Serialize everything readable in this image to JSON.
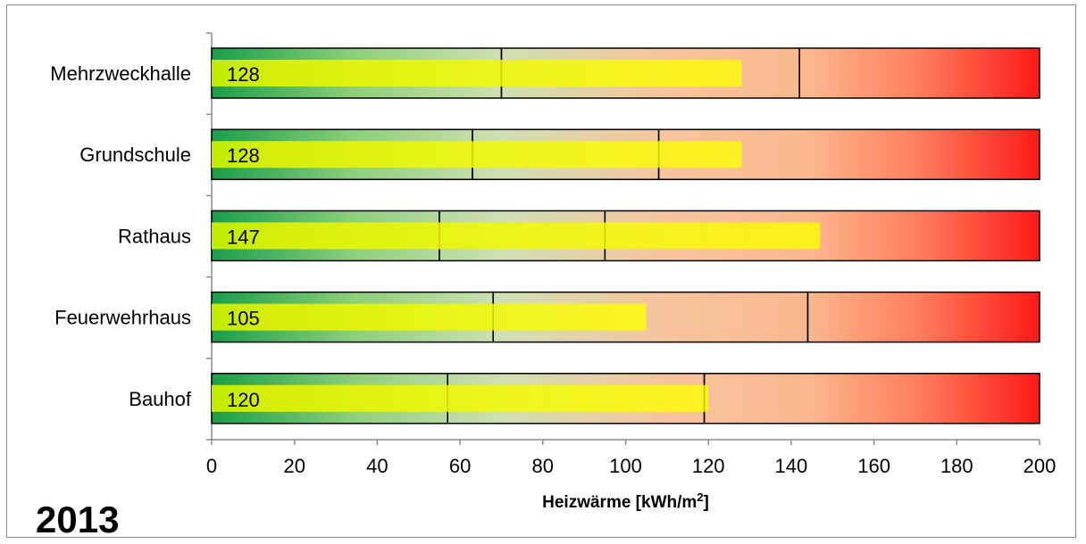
{
  "chart_data": {
    "type": "bar",
    "subtype": "bullet",
    "categories": [
      "Mehrzweckhalle",
      "Grundschule",
      "Rathaus",
      "Feuerwehrhaus",
      "Bauhof"
    ],
    "values": [
      128,
      128,
      147,
      105,
      120
    ],
    "value_labels": [
      "128",
      "128",
      "147",
      "105",
      "120"
    ],
    "thresholds": [
      {
        "low": 70,
        "high": 142
      },
      {
        "low": 63,
        "high": 108
      },
      {
        "low": 55,
        "high": 95
      },
      {
        "low": 68,
        "high": 144
      },
      {
        "low": 57,
        "high": 119
      }
    ],
    "xlim": [
      0,
      200
    ],
    "xticks": [
      0,
      20,
      40,
      60,
      80,
      100,
      120,
      140,
      160,
      180,
      200
    ],
    "xlabel_main": "Heizwärme [kWh/m",
    "xlabel_sup": "2",
    "xlabel_end": "]",
    "annotation": "2013",
    "grid": false,
    "colors": {
      "range_start": "#1a9e4a",
      "range_mid": "#f5c6a0",
      "range_end": "#ff1a1a",
      "value_bar": "#f0f000",
      "outline": "#000000"
    }
  }
}
